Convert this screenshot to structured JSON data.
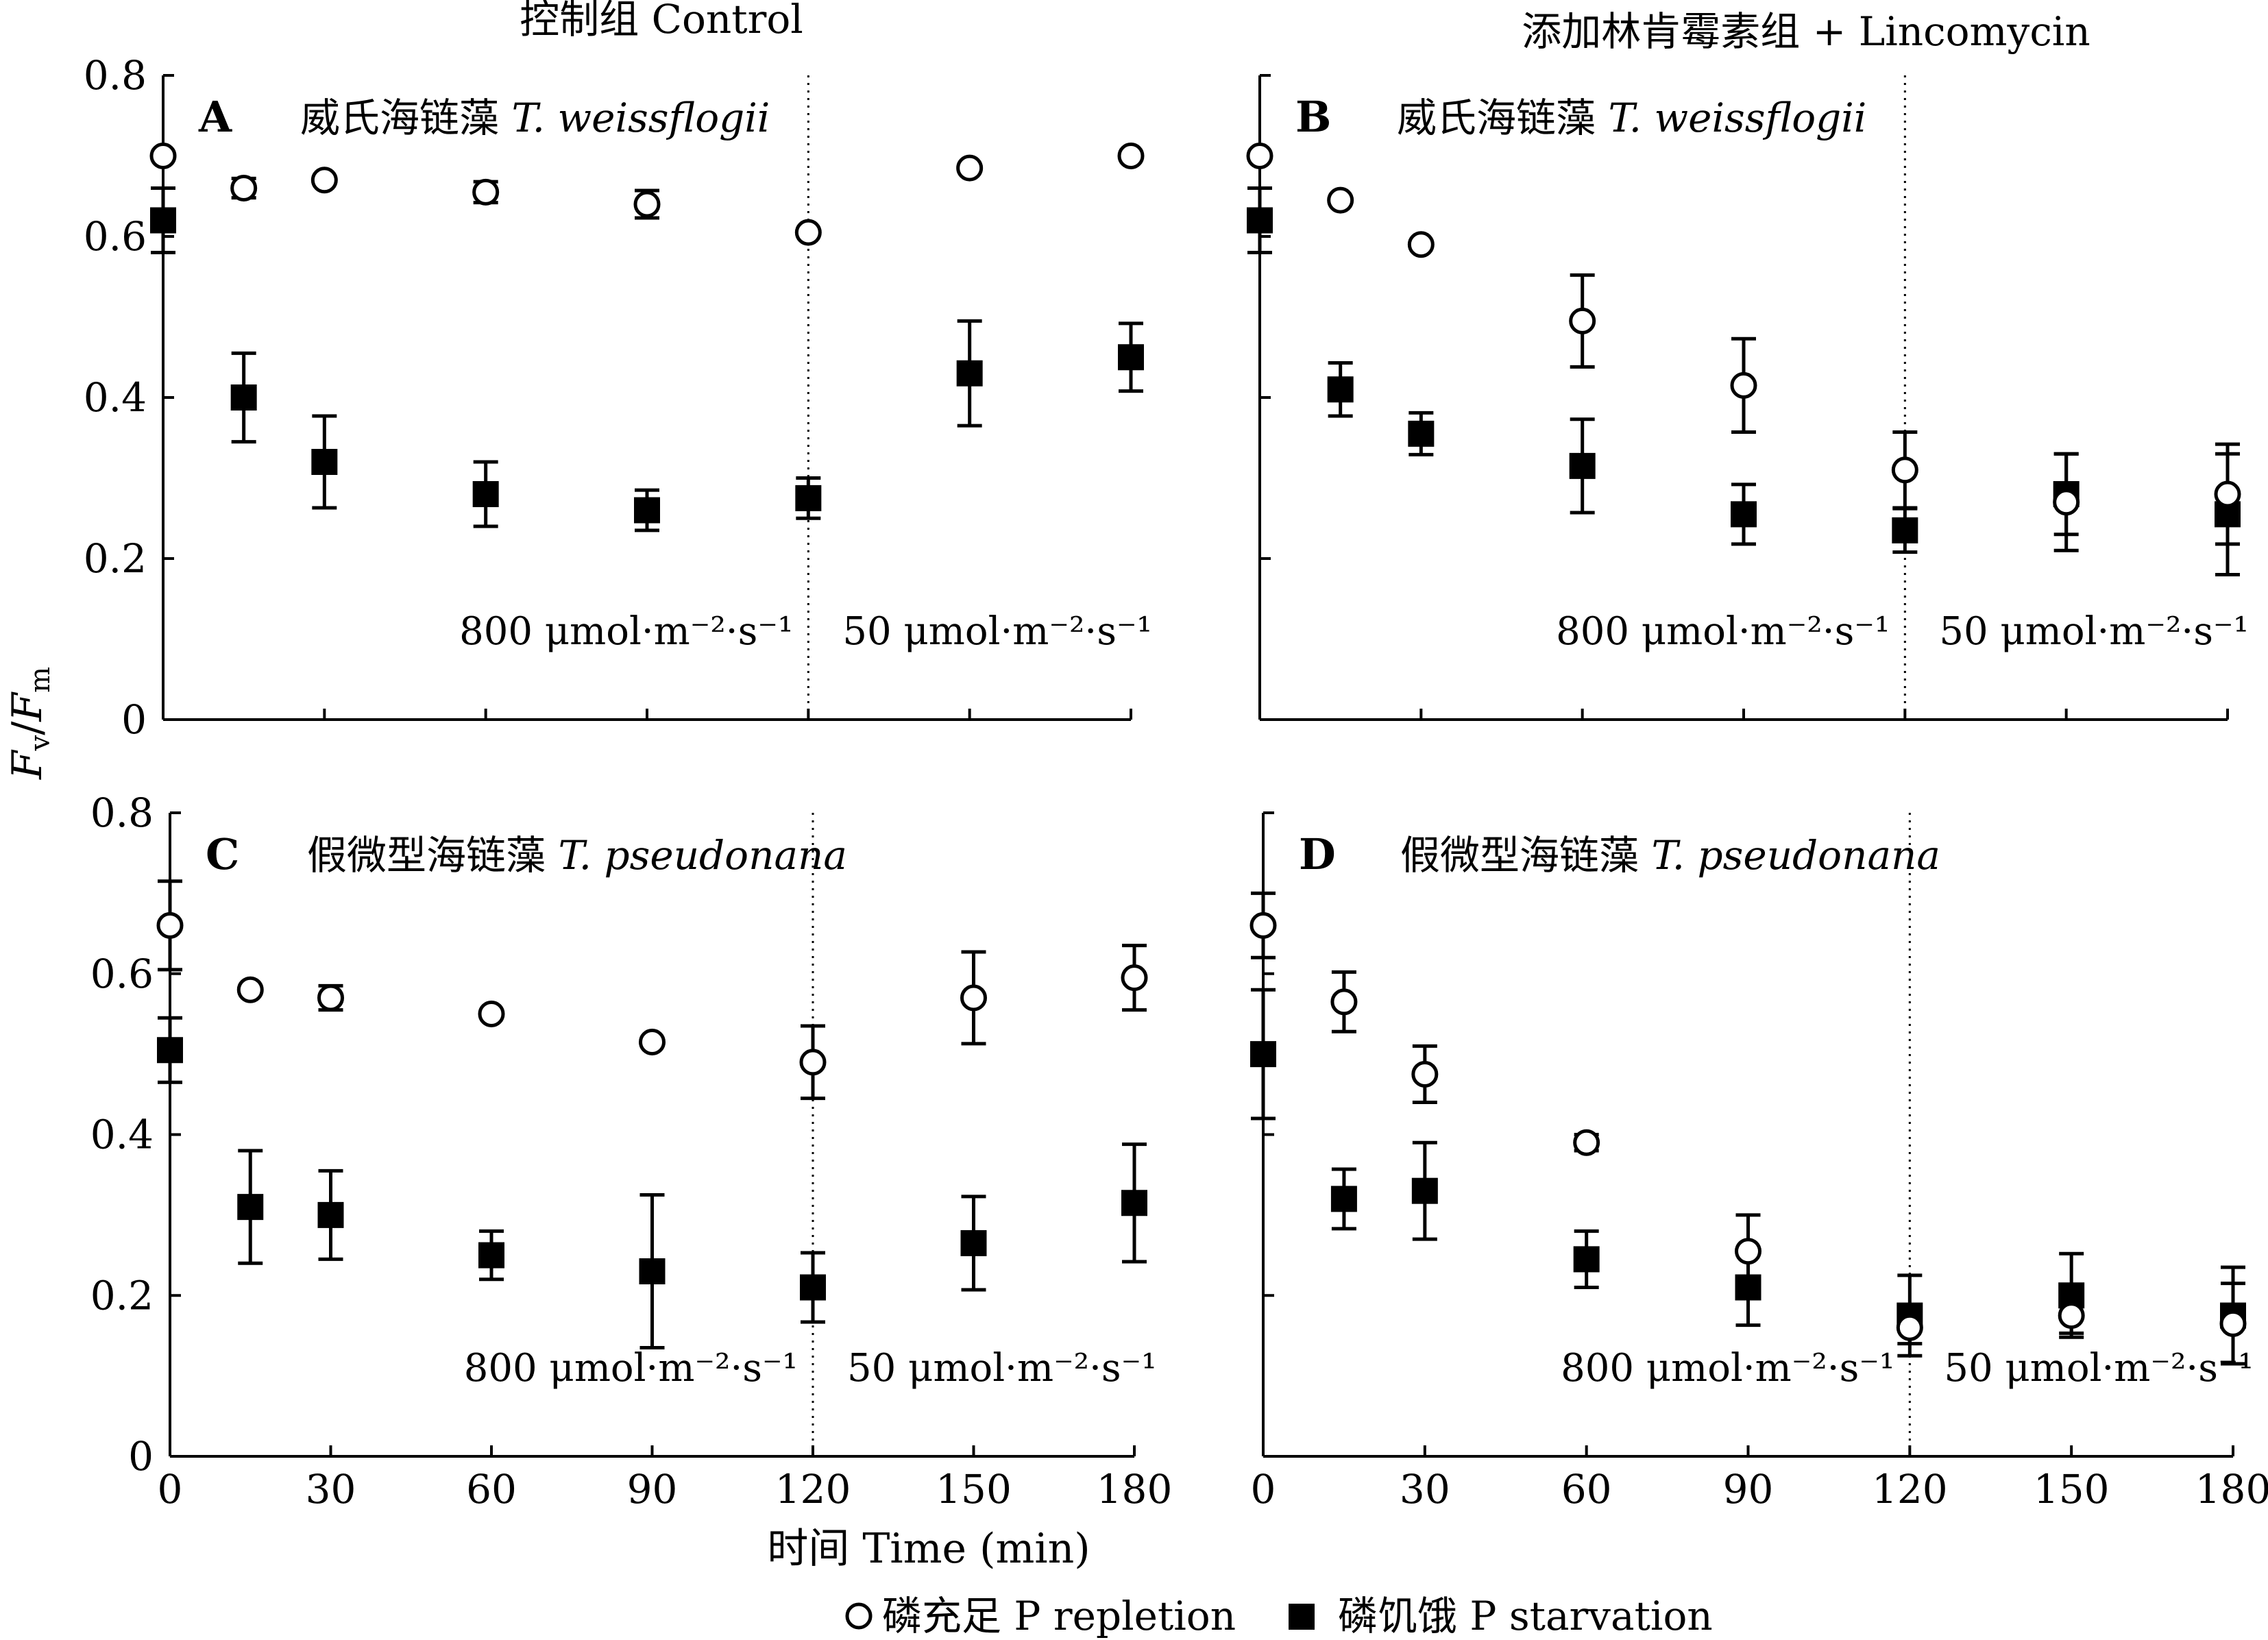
{
  "figure": {
    "col_titles": [
      "控制组 Control",
      "添加林肯霉素组 + Lincomycin"
    ],
    "y_label_main": "F",
    "y_label_sub_v": "v",
    "y_label_slash": "/",
    "y_label_sub_m": "m",
    "x_label": "时间 Time (min)",
    "legend": {
      "repletion": "磷充足 P repletion",
      "starvation": "磷饥饿 P starvation"
    }
  },
  "chart_data": [
    {
      "type": "scatter",
      "panel": "A",
      "title_cn": "威氏海链藻",
      "title_sp": "T. weissflogii",
      "light_left": "800 μmol·m⁻²·s⁻¹",
      "light_right": "50 μmol·m⁻²·s⁻¹",
      "xlim": [
        0,
        180
      ],
      "ylim": [
        0,
        0.8
      ],
      "x_ticks": [
        0,
        30,
        60,
        90,
        120,
        150,
        180
      ],
      "y_ticks": [
        "0",
        "0.2",
        "0.4",
        "0.6",
        "0.8"
      ],
      "show_x_tick_labels": false,
      "show_y_tick_labels": true,
      "divider_x": 120,
      "series": [
        {
          "name": "磷充足 P repletion",
          "marker": "open-circle",
          "x": [
            0,
            15,
            30,
            60,
            90,
            120,
            150,
            180
          ],
          "y": [
            0.7,
            0.66,
            0.67,
            0.655,
            0.64,
            0.605,
            0.685,
            0.7
          ],
          "err": [
            0,
            0.012,
            0,
            0.013,
            0.017,
            0,
            0,
            0
          ]
        },
        {
          "name": "磷饥饿 P starvation",
          "marker": "filled-square",
          "x": [
            0,
            15,
            30,
            60,
            90,
            120,
            150,
            180
          ],
          "y": [
            0.62,
            0.4,
            0.32,
            0.28,
            0.26,
            0.275,
            0.43,
            0.45
          ],
          "err": [
            0.04,
            0.055,
            0.057,
            0.04,
            0.025,
            0.025,
            0.065,
            0.042
          ]
        }
      ]
    },
    {
      "type": "scatter",
      "panel": "B",
      "title_cn": "威氏海链藻",
      "title_sp": "T. weissflogii",
      "light_left": "800 μmol·m⁻²·s⁻¹",
      "light_right": "50  μmol·m⁻²·s⁻¹",
      "xlim": [
        0,
        180
      ],
      "ylim": [
        0,
        0.8
      ],
      "x_ticks": [
        0,
        30,
        60,
        90,
        120,
        150,
        180
      ],
      "y_ticks": [
        "0",
        "0.2",
        "0.4",
        "0.6",
        "0.8"
      ],
      "show_x_tick_labels": false,
      "show_y_tick_labels": false,
      "divider_x": 120,
      "series": [
        {
          "name": "磷充足 P repletion",
          "marker": "open-circle",
          "x": [
            0,
            15,
            30,
            60,
            90,
            120,
            150,
            180
          ],
          "y": [
            0.7,
            0.645,
            0.59,
            0.495,
            0.415,
            0.31,
            0.27,
            0.28
          ],
          "err": [
            0,
            0,
            0,
            0.057,
            0.058,
            0.047,
            0.06,
            0.062
          ]
        },
        {
          "name": "磷饥饿 P starvation",
          "marker": "filled-square",
          "x": [
            0,
            15,
            30,
            60,
            90,
            120,
            150,
            180
          ],
          "y": [
            0.62,
            0.41,
            0.355,
            0.315,
            0.255,
            0.235,
            0.28,
            0.255
          ],
          "err": [
            0.04,
            0.033,
            0.026,
            0.058,
            0.037,
            0.027,
            0.05,
            0.075
          ]
        }
      ]
    },
    {
      "type": "scatter",
      "panel": "C",
      "title_cn": "假微型海链藻",
      "title_sp": "T. pseudonana",
      "light_left": "800 μmol·m⁻²·s⁻¹",
      "light_right": "50 μmol·m⁻²·s⁻¹",
      "xlim": [
        0,
        180
      ],
      "ylim": [
        0,
        0.8
      ],
      "x_ticks": [
        0,
        30,
        60,
        90,
        120,
        150,
        180
      ],
      "y_ticks": [
        "0",
        "0.2",
        "0.4",
        "0.6",
        "0.8"
      ],
      "show_x_tick_labels": true,
      "show_y_tick_labels": true,
      "divider_x": 120,
      "series": [
        {
          "name": "磷充足 P repletion",
          "marker": "open-circle",
          "x": [
            0,
            15,
            30,
            60,
            90,
            120,
            150,
            180
          ],
          "y": [
            0.66,
            0.58,
            0.57,
            0.55,
            0.515,
            0.49,
            0.57,
            0.595
          ],
          "err": [
            0.055,
            0,
            0.015,
            0,
            0,
            0.045,
            0.057,
            0.04
          ]
        },
        {
          "name": "磷饥饿 P starvation",
          "marker": "filled-square",
          "x": [
            0,
            15,
            30,
            60,
            90,
            120,
            150,
            180
          ],
          "y": [
            0.505,
            0.31,
            0.3,
            0.25,
            0.23,
            0.21,
            0.265,
            0.315
          ],
          "err": [
            0.04,
            0.07,
            0.055,
            0.03,
            0.095,
            0.043,
            0.058,
            0.073
          ]
        }
      ]
    },
    {
      "type": "scatter",
      "panel": "D",
      "title_cn": "假微型海链藻",
      "title_sp": "T. pseudonana",
      "light_left": "800 μmol·m⁻²·s⁻¹",
      "light_right": "50 μmol·m⁻²·s⁻¹",
      "xlim": [
        0,
        180
      ],
      "ylim": [
        0,
        0.8
      ],
      "x_ticks": [
        0,
        30,
        60,
        90,
        120,
        150,
        180
      ],
      "y_ticks": [
        "0",
        "0.2",
        "0.4",
        "0.6",
        "0.8"
      ],
      "show_x_tick_labels": true,
      "show_y_tick_labels": false,
      "divider_x": 120,
      "series": [
        {
          "name": "磷充足 P repletion",
          "marker": "open-circle",
          "x": [
            0,
            15,
            30,
            60,
            90,
            120,
            150,
            180
          ],
          "y": [
            0.66,
            0.565,
            0.475,
            0.39,
            0.255,
            0.16,
            0.175,
            0.165
          ],
          "err": [
            0.04,
            0.037,
            0.035,
            0.01,
            0.045,
            0.02,
            0.022,
            0.05
          ]
        },
        {
          "name": "磷饥饿 P starvation",
          "marker": "filled-square",
          "x": [
            0,
            15,
            30,
            60,
            90,
            120,
            150,
            180
          ],
          "y": [
            0.5,
            0.32,
            0.33,
            0.245,
            0.21,
            0.175,
            0.2,
            0.175
          ],
          "err": [
            0.08,
            0.037,
            0.06,
            0.035,
            0.047,
            0.05,
            0.052,
            0.06
          ]
        }
      ]
    }
  ]
}
